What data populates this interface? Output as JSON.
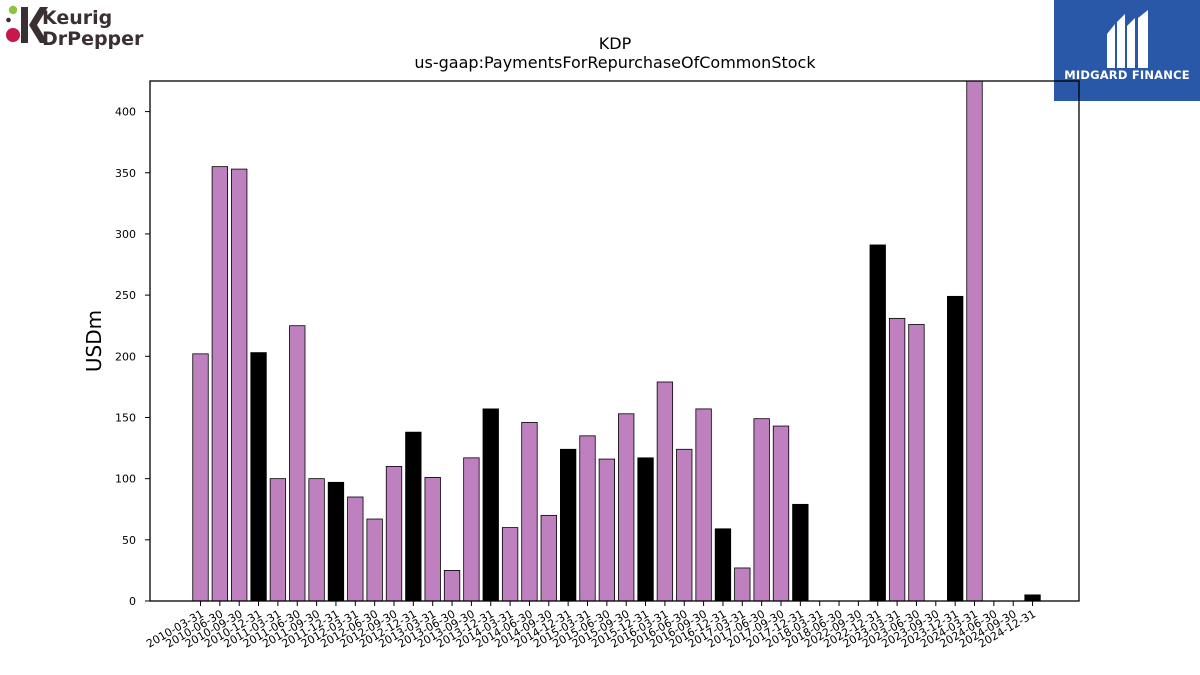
{
  "logos": {
    "left_line1": "Keurig",
    "left_line2": "DrPepper",
    "right_text": "MIDGARD FINANCE"
  },
  "colors": {
    "annual_bar": "#000000",
    "quarter_bar": "#bf80c0",
    "right_logo_bg": "#2a58a8",
    "left_logo_text": "#3a3031",
    "left_logo_red": "#c8174a",
    "left_logo_green": "#8bc53f"
  },
  "chart_data": {
    "type": "bar",
    "title": "KDP",
    "subtitle": "us-gaap:PaymentsForRepurchaseOfCommonStock",
    "xlabel": "",
    "ylabel": "USDm",
    "ylim": [
      0,
      425
    ],
    "yticks": [
      0,
      50,
      100,
      150,
      200,
      250,
      300,
      350,
      400
    ],
    "grid": false,
    "legend": "none",
    "categories": [
      "2010-03-31",
      "2010-06-30",
      "2010-09-30",
      "2010-12-31",
      "2011-03-31",
      "2011-06-30",
      "2011-09-30",
      "2011-12-31",
      "2012-03-31",
      "2012-06-30",
      "2012-09-30",
      "2012-12-31",
      "2013-03-31",
      "2013-06-30",
      "2013-09-30",
      "2013-12-31",
      "2014-03-31",
      "2014-06-30",
      "2014-09-30",
      "2014-12-31",
      "2015-03-31",
      "2015-06-30",
      "2015-09-30",
      "2015-12-31",
      "2016-03-31",
      "2016-06-30",
      "2016-09-30",
      "2016-12-31",
      "2017-03-31",
      "2017-06-30",
      "2017-09-30",
      "2017-12-31",
      "2018-03-31",
      "2018-06-30",
      "2022-09-30",
      "2022-12-31",
      "2023-03-31",
      "2023-06-30",
      "2023-09-30",
      "2023-12-31",
      "2024-03-31",
      "2024-06-30",
      "2024-09-30",
      "2024-12-31"
    ],
    "values": [
      202,
      355,
      353,
      203,
      100,
      225,
      100,
      97,
      85,
      67,
      110,
      138,
      101,
      25,
      117,
      157,
      60,
      146,
      70,
      124,
      135,
      116,
      153,
      117,
      179,
      124,
      157,
      59,
      27,
      149,
      143,
      79,
      0,
      0,
      0,
      291,
      231,
      226,
      0,
      249,
      430,
      0,
      0,
      5
    ],
    "bar_colors": [
      "#bf80c0",
      "#bf80c0",
      "#bf80c0",
      "#000000",
      "#bf80c0",
      "#bf80c0",
      "#bf80c0",
      "#000000",
      "#bf80c0",
      "#bf80c0",
      "#bf80c0",
      "#000000",
      "#bf80c0",
      "#bf80c0",
      "#bf80c0",
      "#000000",
      "#bf80c0",
      "#bf80c0",
      "#bf80c0",
      "#000000",
      "#bf80c0",
      "#bf80c0",
      "#bf80c0",
      "#000000",
      "#bf80c0",
      "#bf80c0",
      "#bf80c0",
      "#000000",
      "#bf80c0",
      "#bf80c0",
      "#bf80c0",
      "#000000",
      "#bf80c0",
      "#bf80c0",
      "#bf80c0",
      "#000000",
      "#bf80c0",
      "#bf80c0",
      "#bf80c0",
      "#000000",
      "#bf80c0",
      "#bf80c0",
      "#bf80c0",
      "#000000"
    ]
  }
}
